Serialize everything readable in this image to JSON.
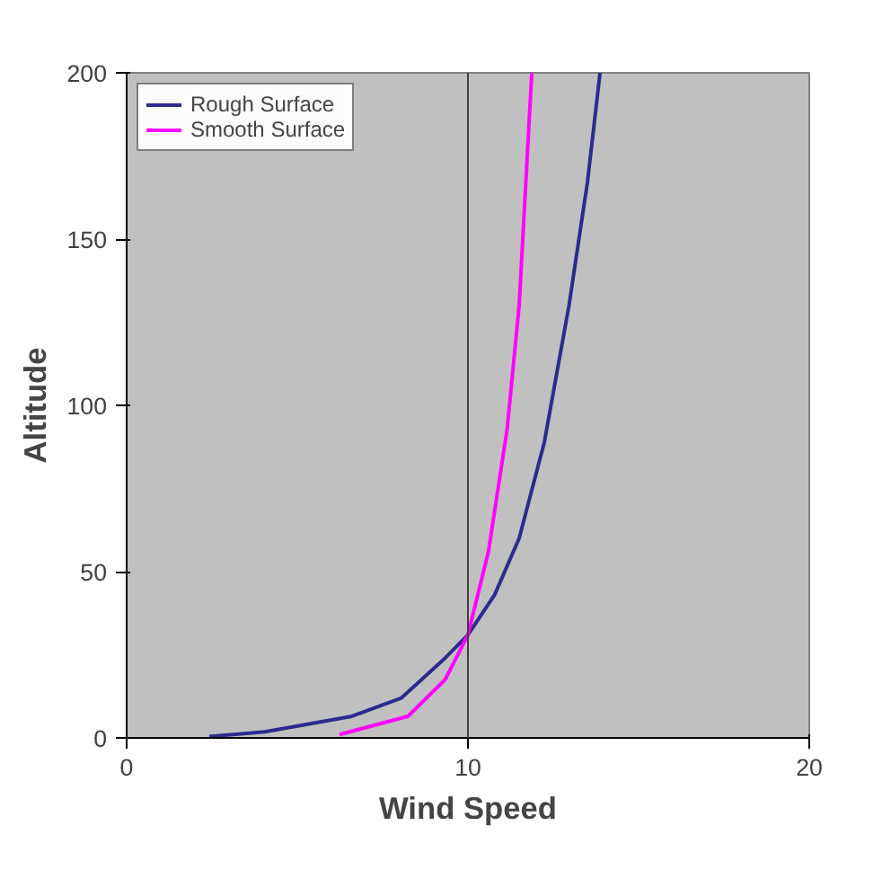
{
  "chart_data": {
    "type": "line",
    "xlabel": "Wind Speed",
    "ylabel": "Altitude",
    "xlim": [
      0,
      20
    ],
    "ylim": [
      0,
      200
    ],
    "xticks": [
      0,
      10,
      20
    ],
    "yticks": [
      0,
      50,
      100,
      150,
      200
    ],
    "grid": false,
    "legend": "top left",
    "ref_lines": [
      {
        "axis": "x",
        "value": 10,
        "color": "#404040"
      }
    ],
    "series": [
      {
        "name": "Rough Surface",
        "color": "#2b2b8f",
        "x": [
          2.42,
          4.05,
          6.6,
          8.05,
          9.33,
          10,
          10.78,
          11.5,
          12.24,
          12.96,
          13.5,
          13.87
        ],
        "values": [
          0.4,
          1.8,
          6.5,
          12,
          24,
          31,
          43,
          60,
          89,
          130,
          167,
          200
        ]
      },
      {
        "name": "Smooth Surface",
        "color": "#ff00ff",
        "x": [
          6.24,
          8.24,
          9.33,
          10,
          10.6,
          11.15,
          11.5,
          11.87
        ],
        "values": [
          1,
          6.5,
          17.5,
          31,
          56,
          93,
          130,
          200
        ]
      }
    ]
  }
}
